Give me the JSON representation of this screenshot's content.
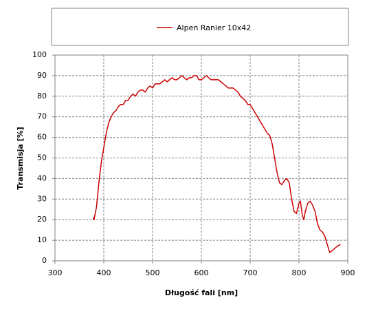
{
  "chart_data": {
    "type": "line",
    "xlabel": "Długość fali [nm]",
    "ylabel": "Transmisja [%]",
    "xlim": [
      300,
      900
    ],
    "xticks": [
      300,
      400,
      500,
      600,
      700,
      800,
      900
    ],
    "ylim": [
      0,
      100
    ],
    "yticks": [
      0,
      10,
      20,
      30,
      40,
      50,
      60,
      70,
      80,
      90,
      100
    ],
    "grid": true,
    "x": [
      378,
      380,
      385,
      390,
      395,
      400,
      405,
      410,
      415,
      420,
      425,
      430,
      435,
      440,
      445,
      450,
      455,
      460,
      465,
      470,
      475,
      480,
      485,
      490,
      495,
      500,
      505,
      510,
      515,
      520,
      525,
      530,
      535,
      540,
      545,
      550,
      555,
      560,
      565,
      570,
      575,
      580,
      585,
      590,
      595,
      600,
      605,
      610,
      615,
      620,
      625,
      630,
      635,
      640,
      645,
      650,
      655,
      660,
      665,
      670,
      675,
      680,
      685,
      690,
      695,
      700,
      705,
      710,
      715,
      720,
      725,
      730,
      735,
      740,
      745,
      750,
      755,
      760,
      765,
      770,
      775,
      780,
      785,
      790,
      795,
      800,
      803,
      807,
      810,
      813,
      818,
      823,
      828,
      833,
      838,
      843,
      848,
      853,
      858,
      863,
      868,
      873,
      878,
      885
    ],
    "series": [
      {
        "name": "Alpen Ranier 10x42",
        "color": "#cc0000",
        "values": [
          21,
          20,
          26,
          38,
          48,
          55,
          62,
          67,
          70,
          72,
          73,
          75,
          76,
          76,
          78,
          78,
          80,
          81,
          80,
          82,
          83,
          83,
          82,
          84,
          85,
          84,
          86,
          86,
          86,
          87,
          88,
          87,
          88,
          89,
          88,
          88,
          89,
          90,
          89,
          88,
          89,
          89,
          90,
          90,
          88,
          88,
          89,
          90,
          89,
          88,
          88,
          88,
          88,
          87,
          86,
          85,
          84,
          84,
          84,
          83,
          82,
          80,
          79,
          78,
          76,
          76,
          74,
          72,
          70,
          68,
          66,
          64,
          62,
          61,
          57,
          50,
          43,
          38,
          37,
          39,
          40,
          38,
          30,
          24,
          23,
          28,
          29,
          22,
          20,
          24,
          28,
          29,
          27,
          24,
          18,
          15,
          14,
          12,
          8,
          4,
          5,
          6,
          7,
          8
        ]
      }
    ]
  }
}
